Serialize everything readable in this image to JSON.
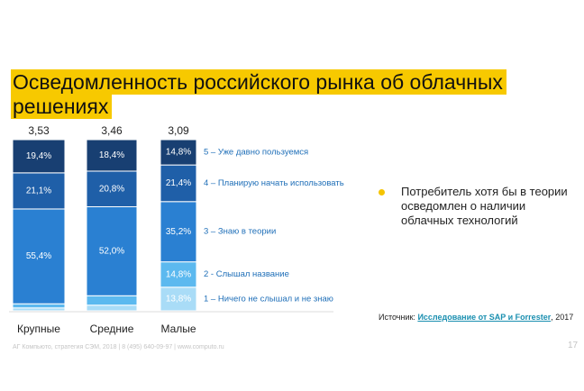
{
  "title": "Осведомленность российского рынка об облачных решениях",
  "chart_data": {
    "type": "bar",
    "stacked": true,
    "categories": [
      "Крупные",
      "Средние",
      "Малые"
    ],
    "averages": [
      3.53,
      3.46,
      3.09
    ],
    "average_labels": [
      "3,53",
      "3,46",
      "3,09"
    ],
    "ylim": [
      0,
      100
    ],
    "series": [
      {
        "name": "1 – Ничего не слышал и не знаю",
        "color": "#a9dcf7",
        "values": [
          1.7,
          3.3,
          13.8
        ],
        "value_labels": [
          null,
          null,
          "13,8%"
        ]
      },
      {
        "name": "2 - Слышал название",
        "color": "#5cb9ef",
        "values": [
          2.4,
          5.5,
          14.8
        ],
        "value_labels": [
          null,
          null,
          "14,8%"
        ]
      },
      {
        "name": "3 – Знаю в теории",
        "color": "#2a80d2",
        "values": [
          55.4,
          52.0,
          35.2
        ],
        "value_labels": [
          "55,4%",
          "52,0%",
          "35,2%"
        ]
      },
      {
        "name": "4 – Планирую начать использовать",
        "color": "#1f5fa8",
        "values": [
          21.1,
          20.8,
          21.4
        ],
        "value_labels": [
          "21,1%",
          "20,8%",
          "21,4%"
        ]
      },
      {
        "name": "5 – Уже давно пользуемся",
        "color": "#183f72",
        "values": [
          19.4,
          18.4,
          14.8
        ],
        "value_labels": [
          "19,4%",
          "18,4%",
          "14,8%"
        ]
      }
    ]
  },
  "bullet": "Потребитель хотя бы в теории осведомлен о наличии облачных технологий",
  "source": {
    "prefix": "Источник:",
    "link": "Исследование от SAP и Forrester",
    "suffix": ", 2017"
  },
  "footer": "АГ Компьюто, стратегия СЭМ, 2018 | 8 (495) 640-09-97 | www.computo.ru",
  "page_number": "17"
}
